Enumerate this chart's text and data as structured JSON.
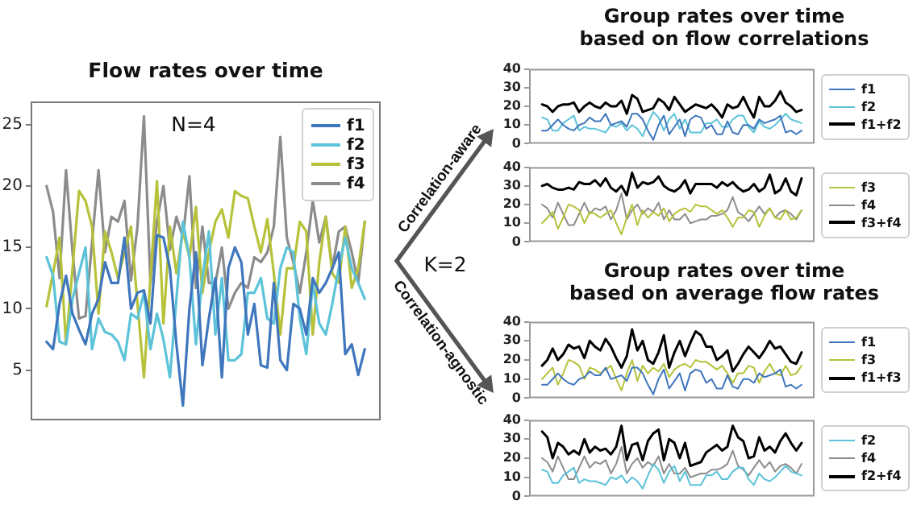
{
  "chart_data": [
    {
      "type": "line",
      "title": "Flow rates over time",
      "categories": [
        null,
        null,
        null,
        null,
        null,
        null,
        null,
        null,
        null,
        null,
        null,
        null,
        null,
        null,
        null,
        null,
        null,
        null,
        null,
        null,
        null,
        null,
        null,
        null,
        null,
        null,
        null,
        null,
        null,
        null,
        null,
        null,
        null,
        null,
        null,
        null,
        null,
        null,
        null,
        null,
        null,
        null,
        null,
        null,
        null,
        null,
        null,
        null,
        null,
        null
      ],
      "series": [
        {
          "name": "f1",
          "color": "#3f76bd",
          "values": [
            7.3,
            6.7,
            10.4,
            12.7,
            9.6,
            8.3,
            7.1,
            9.6,
            10.8,
            13.8,
            12.1,
            12.1,
            15.8,
            10,
            11.3,
            11.5,
            8.8,
            16,
            15.8,
            13.3,
            7.1,
            2.1,
            10,
            14.6,
            5.4,
            9.2,
            12.5,
            4.4,
            13.3,
            15,
            13.8,
            7.9,
            10.4,
            5.4,
            5.2,
            12.1,
            5.8,
            5,
            10.4,
            10,
            7.9,
            12.5,
            11.3,
            12.1,
            13.3,
            14.6,
            6.3,
            7.1,
            4.6,
            6.7
          ]
        },
        {
          "name": "f2",
          "color": "#5cc3d9",
          "values": [
            14.2,
            12.7,
            7.3,
            7.1,
            10.8,
            12.9,
            15,
            6.7,
            9.2,
            8.1,
            7.9,
            7.3,
            5.8,
            9.6,
            9.2,
            11.3,
            6.7,
            9.6,
            7.5,
            4.4,
            10.8,
            17.1,
            14.2,
            7.1,
            12.5,
            16.3,
            7.9,
            12.5,
            5.8,
            5.8,
            6.3,
            11.3,
            11.3,
            12.5,
            9.2,
            8.8,
            13.3,
            15,
            14.6,
            9.2,
            6.3,
            12.1,
            8.8,
            7.9,
            10.4,
            13.3,
            15.8,
            13.3,
            12.1,
            10.8
          ]
        },
        {
          "name": "f3",
          "color": "#b6c23a",
          "values": [
            10.2,
            12.9,
            15.8,
            7.1,
            13.3,
            19.6,
            18.8,
            16.7,
            9.6,
            16.3,
            14.6,
            12.5,
            14.6,
            16.7,
            10.4,
            4.4,
            12.5,
            20.4,
            8.8,
            16.7,
            12.9,
            16.3,
            14.2,
            18.3,
            11.3,
            14.6,
            17.1,
            18.1,
            15.8,
            19.6,
            19.2,
            19,
            16.7,
            14.6,
            17.3,
            12.9,
            7.9,
            13.3,
            13.3,
            17.1,
            16.3,
            7.9,
            13.8,
            17.5,
            12.9,
            12.1,
            16.7,
            11.7,
            13.3,
            17.1
          ]
        },
        {
          "name": "f4",
          "color": "#8c8c8c",
          "values": [
            20,
            17.9,
            12.5,
            21.3,
            14.6,
            9.2,
            9.4,
            15.4,
            21.3,
            14.6,
            17.5,
            17.1,
            18.8,
            12.3,
            16.7,
            25.7,
            12.1,
            17.1,
            20,
            14.8,
            17.5,
            15.8,
            20.8,
            11.7,
            16.7,
            12.1,
            12.1,
            15,
            10,
            11.3,
            12.1,
            11.7,
            14.2,
            13.8,
            14.6,
            16.7,
            24,
            15.8,
            13.8,
            11.3,
            14.6,
            18.8,
            15.4,
            17.5,
            13.3,
            16.3,
            16.7,
            14.6,
            12.1,
            17.1
          ]
        }
      ],
      "ylim": [
        0.9,
        26.9
      ],
      "yticks": [
        5,
        10,
        15,
        20,
        25
      ],
      "legend": "top right",
      "marker": "none",
      "annotations": [
        "N=4",
        "K=2"
      ]
    },
    {
      "type": "line",
      "title": "Group rates over time\nbased on flow correlations",
      "categories": [
        null,
        null,
        null,
        null,
        null,
        null,
        null,
        null,
        null,
        null,
        null,
        null,
        null,
        null,
        null,
        null,
        null,
        null,
        null,
        null,
        null,
        null,
        null,
        null,
        null,
        null,
        null,
        null,
        null,
        null,
        null,
        null,
        null,
        null,
        null,
        null,
        null,
        null,
        null,
        null,
        null,
        null,
        null,
        null,
        null,
        null,
        null,
        null,
        null,
        null
      ],
      "series": [
        {
          "name": "f1",
          "color": "#3f76bd",
          "values": [
            7,
            7,
            10,
            13,
            10,
            8,
            7,
            10,
            11,
            14,
            12,
            12,
            16,
            10,
            11,
            12,
            9,
            16,
            16,
            13,
            7,
            2,
            10,
            15,
            5,
            9,
            13,
            4,
            13,
            15,
            14,
            8,
            10,
            5,
            5,
            12,
            6,
            5,
            10,
            10,
            8,
            13,
            11,
            12,
            13,
            15,
            6,
            7,
            5,
            7
          ]
        },
        {
          "name": "f2",
          "color": "#5cc3d9",
          "values": [
            14,
            13,
            7,
            7,
            11,
            13,
            15,
            7,
            9,
            8,
            8,
            7,
            6,
            10,
            9,
            11,
            7,
            10,
            8,
            4,
            11,
            17,
            14,
            7,
            13,
            16,
            8,
            13,
            6,
            6,
            6,
            11,
            11,
            13,
            9,
            9,
            13,
            15,
            15,
            9,
            6,
            12,
            9,
            8,
            10,
            13,
            16,
            13,
            12,
            11
          ]
        },
        {
          "name": "f1+f2",
          "color": "#000000",
          "values": [
            21,
            20,
            17,
            20,
            21,
            21,
            22,
            17,
            20,
            22,
            20,
            19,
            22,
            20,
            20,
            23,
            16,
            26,
            24,
            17,
            18,
            19,
            24,
            22,
            18,
            25,
            21,
            17,
            19,
            21,
            20,
            19,
            21,
            18,
            14,
            21,
            19,
            20,
            25,
            19,
            14,
            25,
            20,
            20,
            23,
            28,
            22,
            20,
            17,
            18
          ]
        }
      ],
      "ylim": [
        0,
        40
      ],
      "yticks": [
        0,
        10,
        20,
        30,
        40
      ],
      "legend": "right",
      "marker": "none",
      "annotations": [
        "Correlation-aware"
      ]
    },
    {
      "type": "line",
      "categories": [
        null,
        null,
        null,
        null,
        null,
        null,
        null,
        null,
        null,
        null,
        null,
        null,
        null,
        null,
        null,
        null,
        null,
        null,
        null,
        null,
        null,
        null,
        null,
        null,
        null,
        null,
        null,
        null,
        null,
        null,
        null,
        null,
        null,
        null,
        null,
        null,
        null,
        null,
        null,
        null,
        null,
        null,
        null,
        null,
        null,
        null,
        null,
        null,
        null,
        null
      ],
      "series": [
        {
          "name": "f3",
          "color": "#b6c23a",
          "values": [
            10,
            13,
            16,
            7,
            13,
            20,
            19,
            17,
            10,
            16,
            15,
            13,
            15,
            17,
            10,
            4,
            13,
            20,
            9,
            17,
            13,
            16,
            14,
            18,
            11,
            15,
            17,
            18,
            16,
            20,
            19,
            19,
            17,
            15,
            17,
            13,
            8,
            13,
            13,
            17,
            16,
            8,
            14,
            18,
            13,
            12,
            17,
            12,
            13,
            17
          ]
        },
        {
          "name": "f4",
          "color": "#8c8c8c",
          "values": [
            20,
            18,
            13,
            21,
            15,
            9,
            9,
            15,
            21,
            15,
            18,
            17,
            19,
            12,
            17,
            26,
            12,
            17,
            20,
            15,
            18,
            16,
            21,
            12,
            17,
            12,
            12,
            15,
            10,
            11,
            12,
            12,
            14,
            14,
            15,
            17,
            24,
            16,
            14,
            11,
            15,
            19,
            15,
            18,
            13,
            16,
            17,
            15,
            12,
            17
          ]
        },
        {
          "name": "f3+f4",
          "color": "#000000",
          "values": [
            30,
            31,
            29,
            28,
            28,
            29,
            28,
            32,
            31,
            31,
            33,
            30,
            34,
            29,
            27,
            30,
            25,
            37,
            29,
            32,
            31,
            32,
            35,
            30,
            28,
            27,
            29,
            33,
            26,
            31,
            31,
            31,
            31,
            29,
            32,
            30,
            32,
            29,
            27,
            28,
            31,
            27,
            29,
            36,
            26,
            28,
            34,
            27,
            25,
            34
          ]
        }
      ],
      "ylim": [
        0,
        40
      ],
      "yticks": [
        0,
        10,
        20,
        30,
        40
      ],
      "legend": "right",
      "marker": "none"
    },
    {
      "type": "line",
      "title": "Group rates over time\nbased on average flow rates",
      "categories": [
        null,
        null,
        null,
        null,
        null,
        null,
        null,
        null,
        null,
        null,
        null,
        null,
        null,
        null,
        null,
        null,
        null,
        null,
        null,
        null,
        null,
        null,
        null,
        null,
        null,
        null,
        null,
        null,
        null,
        null,
        null,
        null,
        null,
        null,
        null,
        null,
        null,
        null,
        null,
        null,
        null,
        null,
        null,
        null,
        null,
        null,
        null,
        null,
        null,
        null
      ],
      "series": [
        {
          "name": "f1",
          "color": "#3f76bd",
          "values": [
            7,
            7,
            10,
            13,
            10,
            8,
            7,
            10,
            11,
            14,
            12,
            12,
            16,
            10,
            11,
            12,
            9,
            16,
            16,
            13,
            7,
            2,
            10,
            15,
            5,
            9,
            13,
            4,
            13,
            15,
            14,
            8,
            10,
            5,
            5,
            12,
            6,
            5,
            10,
            10,
            8,
            13,
            11,
            12,
            13,
            15,
            6,
            7,
            5,
            7
          ]
        },
        {
          "name": "f3",
          "color": "#b6c23a",
          "values": [
            10,
            13,
            16,
            7,
            13,
            20,
            19,
            17,
            10,
            16,
            15,
            13,
            15,
            17,
            10,
            4,
            13,
            20,
            9,
            17,
            13,
            16,
            14,
            18,
            11,
            15,
            17,
            18,
            16,
            20,
            19,
            19,
            17,
            15,
            17,
            13,
            8,
            13,
            13,
            17,
            16,
            8,
            14,
            18,
            13,
            12,
            17,
            12,
            13,
            17
          ]
        },
        {
          "name": "f1+f3",
          "color": "#000000",
          "values": [
            17,
            20,
            26,
            20,
            23,
            28,
            26,
            27,
            21,
            30,
            27,
            25,
            31,
            27,
            21,
            16,
            22,
            36,
            25,
            30,
            20,
            18,
            24,
            33,
            16,
            24,
            30,
            22,
            29,
            35,
            33,
            27,
            27,
            20,
            22,
            25,
            14,
            18,
            23,
            27,
            24,
            21,
            25,
            30,
            26,
            27,
            23,
            19,
            18,
            24
          ]
        }
      ],
      "ylim": [
        0,
        40
      ],
      "yticks": [
        0,
        10,
        20,
        30,
        40
      ],
      "legend": "right",
      "marker": "none",
      "annotations": [
        "Correlation-agnostic"
      ]
    },
    {
      "type": "line",
      "categories": [
        null,
        null,
        null,
        null,
        null,
        null,
        null,
        null,
        null,
        null,
        null,
        null,
        null,
        null,
        null,
        null,
        null,
        null,
        null,
        null,
        null,
        null,
        null,
        null,
        null,
        null,
        null,
        null,
        null,
        null,
        null,
        null,
        null,
        null,
        null,
        null,
        null,
        null,
        null,
        null,
        null,
        null,
        null,
        null,
        null,
        null,
        null,
        null,
        null,
        null
      ],
      "series": [
        {
          "name": "f2",
          "color": "#5cc3d9",
          "values": [
            14,
            13,
            7,
            7,
            11,
            13,
            15,
            7,
            9,
            8,
            8,
            7,
            6,
            10,
            9,
            11,
            7,
            10,
            8,
            4,
            11,
            17,
            14,
            7,
            13,
            16,
            8,
            13,
            6,
            6,
            6,
            11,
            11,
            13,
            9,
            9,
            13,
            15,
            15,
            9,
            6,
            12,
            9,
            8,
            10,
            13,
            16,
            13,
            12,
            11
          ]
        },
        {
          "name": "f4",
          "color": "#8c8c8c",
          "values": [
            20,
            18,
            13,
            21,
            15,
            9,
            9,
            15,
            21,
            15,
            18,
            17,
            19,
            12,
            17,
            26,
            12,
            17,
            20,
            15,
            18,
            16,
            21,
            12,
            17,
            12,
            12,
            15,
            10,
            11,
            12,
            12,
            14,
            14,
            15,
            17,
            24,
            16,
            14,
            11,
            15,
            19,
            15,
            18,
            13,
            16,
            17,
            15,
            12,
            17
          ]
        },
        {
          "name": "f2+f4",
          "color": "#000000",
          "values": [
            34,
            31,
            20,
            28,
            26,
            22,
            24,
            22,
            30,
            23,
            26,
            24,
            25,
            22,
            26,
            37,
            19,
            27,
            28,
            19,
            29,
            33,
            35,
            19,
            30,
            28,
            20,
            28,
            16,
            17,
            18,
            23,
            25,
            27,
            24,
            26,
            37,
            31,
            29,
            20,
            21,
            31,
            24,
            26,
            23,
            29,
            33,
            28,
            24,
            28
          ]
        }
      ],
      "ylim": [
        0,
        40
      ],
      "yticks": [
        0,
        10,
        20,
        30,
        40
      ],
      "legend": "right",
      "marker": "none"
    }
  ]
}
